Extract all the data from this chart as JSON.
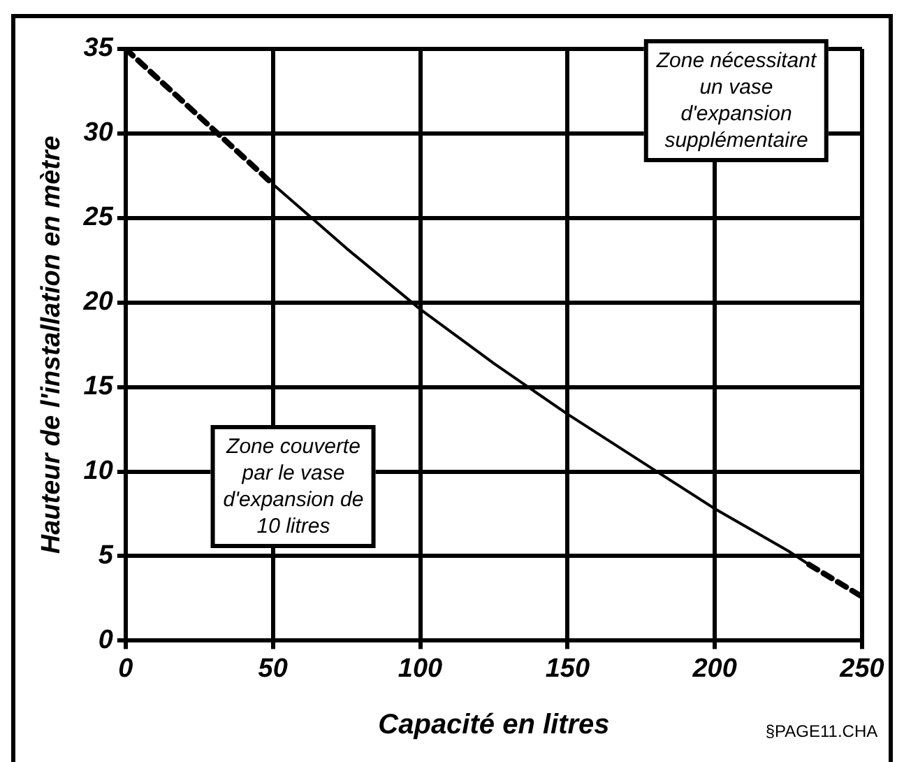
{
  "chart_data": {
    "type": "line",
    "xlabel": "Capacité en litres",
    "ylabel": "Hauteur de l'installation en mètre",
    "series": [
      {
        "color": "#000000",
        "line_style": "dashed",
        "x": [
          0,
          25,
          50
        ],
        "values": [
          35,
          31,
          27
        ]
      },
      {
        "color": "#000000",
        "line_style": "solid",
        "x": [
          50,
          75,
          100,
          125,
          150,
          175,
          200,
          225,
          232
        ],
        "values": [
          27,
          23.2,
          19.6,
          16.4,
          13.4,
          10.6,
          7.8,
          5.3,
          4.5
        ]
      },
      {
        "color": "#000000",
        "line_style": "dashed",
        "x": [
          232,
          250
        ],
        "values": [
          4.5,
          2.6
        ]
      }
    ],
    "xlim": [
      0,
      250
    ],
    "xticks": [
      0,
      50,
      100,
      150,
      200,
      250
    ],
    "ylim": [
      0,
      35
    ],
    "yticks": [
      0,
      5,
      10,
      15,
      20,
      25,
      30,
      35
    ],
    "grid": true,
    "legend": false,
    "marker": "none",
    "annotations": [
      "Zone nécessitant\nun vase\nd'expansion\nsupplémentaire",
      "Zone couverte\npar le vase\nd'expansion de\n10 litres",
      "§PAGE11.CHA"
    ]
  }
}
